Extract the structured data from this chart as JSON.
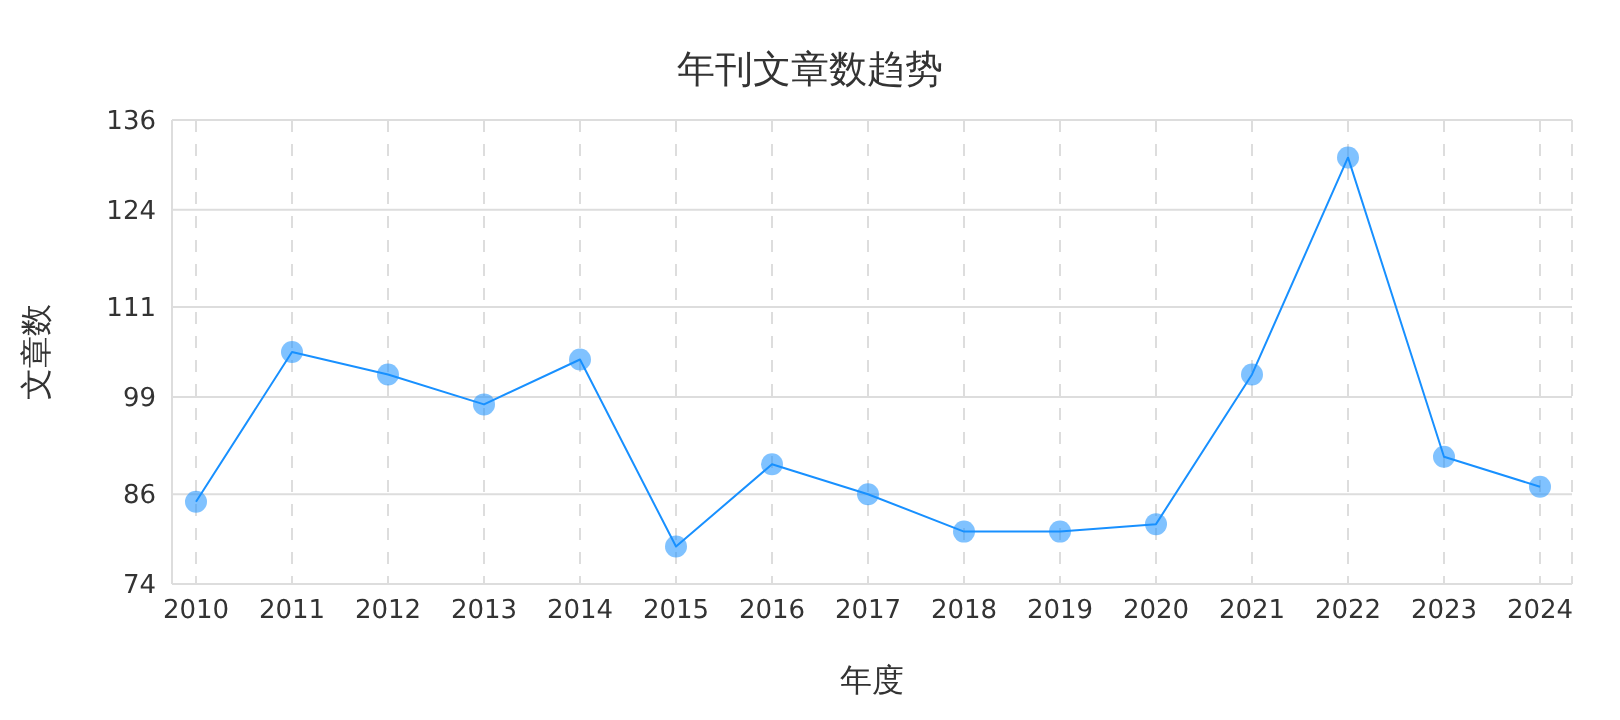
{
  "chart_data": {
    "type": "line",
    "title": "年刊文章数趋势",
    "xlabel": "年度",
    "ylabel": "文章数",
    "categories": [
      "2010",
      "2011",
      "2012",
      "2013",
      "2014",
      "2015",
      "2016",
      "2017",
      "2018",
      "2019",
      "2020",
      "2021",
      "2022",
      "2023",
      "2024"
    ],
    "series": [
      {
        "color": "#1890ff",
        "values": [
          85,
          105,
          102,
          98,
          104,
          79,
          90,
          86,
          81,
          81,
          82,
          102,
          131,
          91,
          87
        ]
      }
    ],
    "ylim": [
      74,
      136
    ],
    "yticks": [
      74,
      86,
      99,
      111,
      124,
      136
    ],
    "grid": true,
    "marker": "circle",
    "line_style": "solid"
  }
}
